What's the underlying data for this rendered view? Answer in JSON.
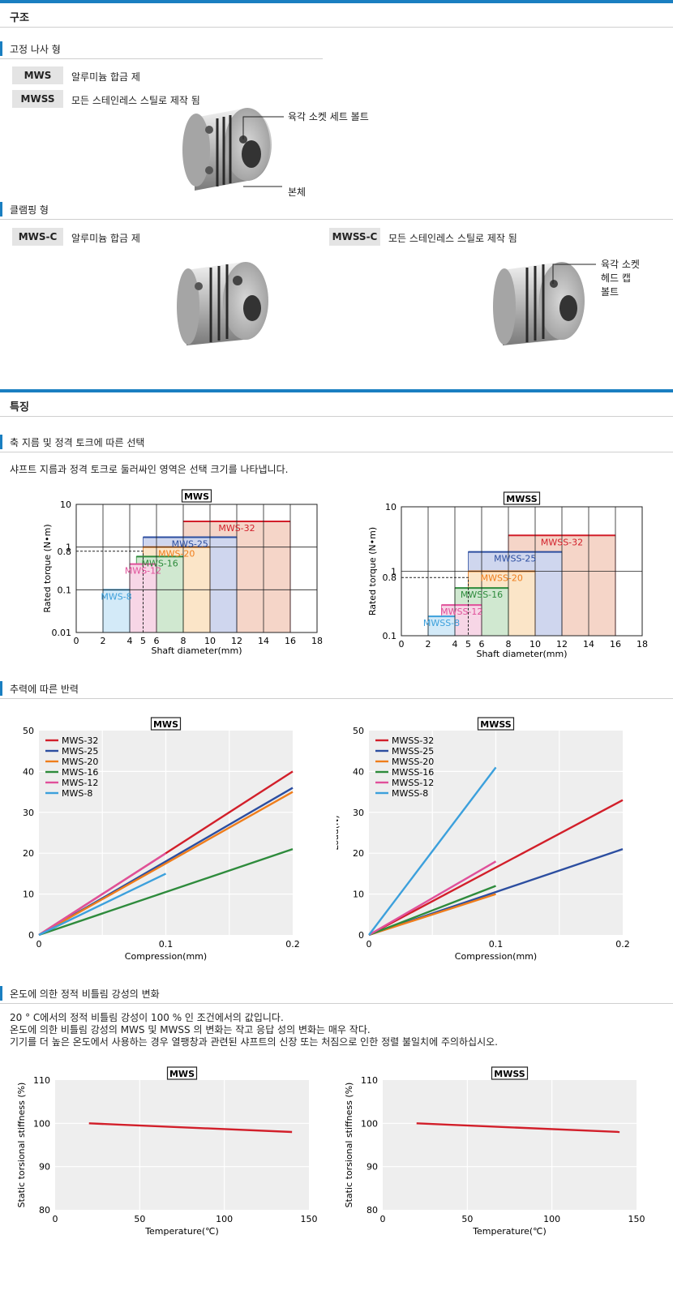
{
  "sections": {
    "structure": "구조",
    "features": "특징"
  },
  "fixed_screw": {
    "title": "고정 나사 형",
    "rows": [
      {
        "tag": "MWS",
        "desc": "알루미늄 합금 제"
      },
      {
        "tag": "MWSS",
        "desc": "모든 스테인레스 스틸로 제작 됨"
      }
    ],
    "callout_bolt": "육각 소켓 세트 볼트",
    "callout_body": "본체"
  },
  "clamping": {
    "title": "클램핑 형",
    "left": {
      "tag": "MWS-C",
      "desc": "알루미늄 합금 제"
    },
    "right": {
      "tag": "MWSS-C",
      "desc": "모든 스테인레스 스틸로 제작 됨"
    },
    "callout": [
      "육각 소켓",
      "헤드 캡",
      "볼트"
    ]
  },
  "selection": {
    "title": "축 지름 및 정격 토크에 따른 선택",
    "desc": "샤프트 지름과 정격 토크로 둘러싸인 영역은 선택 크기를 나타냅니다."
  },
  "reaction": {
    "title": "추력에 따른 반력"
  },
  "temperature": {
    "title": "온도에 의한 정적 비틀림 강성의 변화",
    "notes": [
      "20 ° C에서의 정적 비틀림 강성이 100 % 인 조건에서의 값입니다.",
      "온도에 의한 비틀림 강성의 MWS 및 MWSS 의 변화는 작고 응답 성의 변화는 매우 작다.",
      "기기를 더 높은 온도에서 사용하는 경우 열팽창과 관련된 샤프트의 신장 또는 처짐으로 인한 정렬 불일치에 주의하십시오."
    ]
  },
  "colors": {
    "accent": "#1a7fc1",
    "s32": "#d21f2a",
    "s25": "#2c4ea0",
    "s20": "#ef7d1b",
    "s16": "#2e8b3c",
    "s12": "#e0509a",
    "s8": "#3ca0dc"
  },
  "chart_data": [
    {
      "type": "area",
      "title": "MWS",
      "xlabel": "Shaft diameter(mm)",
      "ylabel": "Rated torque (N•m)",
      "log_y": true,
      "xlim": [
        0,
        18
      ],
      "ylim": [
        0.01,
        10
      ],
      "x_ticks": [
        "0",
        "2",
        "4",
        "5",
        "6",
        "8",
        "10",
        "12",
        "14",
        "16",
        "18"
      ],
      "y_ticks": [
        "10",
        "1",
        "0.8",
        "0.1",
        "0.01"
      ],
      "reference": {
        "x": 5,
        "y": 0.8
      },
      "series": [
        {
          "name": "MWS-32",
          "x_range": [
            8,
            16
          ],
          "torque": 4.0,
          "color": "#d21f2a",
          "fill": "#f5d5c8"
        },
        {
          "name": "MWS-25",
          "x_range": [
            5,
            12
          ],
          "torque": 1.7,
          "color": "#2c4ea0",
          "fill": "#cfd6ee"
        },
        {
          "name": "MWS-20",
          "x_range": [
            5,
            10
          ],
          "torque": 1.0,
          "color": "#ef7d1b",
          "fill": "#fbe5c8"
        },
        {
          "name": "MWS-16",
          "x_range": [
            4.5,
            8
          ],
          "torque": 0.6,
          "color": "#2e8b3c",
          "fill": "#d0e8d0"
        },
        {
          "name": "MWS-12",
          "x_range": [
            4,
            6
          ],
          "torque": 0.4,
          "color": "#e0509a",
          "fill": "#f7d6e6"
        },
        {
          "name": "MWS-8",
          "x_range": [
            2,
            4
          ],
          "torque": 0.1,
          "color": "#3ca0dc",
          "fill": "#d3eaf8"
        }
      ]
    },
    {
      "type": "area",
      "title": "MWSS",
      "xlabel": "Shaft diameter(mm)",
      "ylabel": "Rated torque (N•m)",
      "log_y": true,
      "xlim": [
        0,
        18
      ],
      "ylim": [
        0.1,
        10
      ],
      "x_ticks": [
        "0",
        "2",
        "4",
        "5",
        "6",
        "8",
        "10",
        "12",
        "14",
        "16",
        "18"
      ],
      "y_ticks": [
        "10",
        "1",
        "0.8",
        "0.1"
      ],
      "reference": {
        "x": 5,
        "y": 0.8
      },
      "series": [
        {
          "name": "MWSS-32",
          "x_range": [
            8,
            16
          ],
          "torque": 3.6,
          "color": "#d21f2a",
          "fill": "#f5d5c8"
        },
        {
          "name": "MWSS-25",
          "x_range": [
            5,
            12
          ],
          "torque": 2.0,
          "color": "#2c4ea0",
          "fill": "#cfd6ee"
        },
        {
          "name": "MWSS-20",
          "x_range": [
            5,
            10
          ],
          "torque": 1.0,
          "color": "#ef7d1b",
          "fill": "#fbe5c8"
        },
        {
          "name": "MWSS-16",
          "x_range": [
            4,
            8
          ],
          "torque": 0.55,
          "color": "#2e8b3c",
          "fill": "#d0e8d0"
        },
        {
          "name": "MWSS-12",
          "x_range": [
            3,
            6
          ],
          "torque": 0.3,
          "color": "#e0509a",
          "fill": "#f7d6e6"
        },
        {
          "name": "MWSS-8",
          "x_range": [
            2,
            4
          ],
          "torque": 0.2,
          "color": "#3ca0dc",
          "fill": "#d3eaf8"
        }
      ]
    },
    {
      "type": "line",
      "title": "MWS",
      "xlabel": "Compression(mm)",
      "ylabel": "",
      "xlim": [
        0,
        0.2
      ],
      "ylim": [
        0,
        50
      ],
      "x_ticks": [
        "0",
        "0.1",
        "0.2"
      ],
      "y_ticks": [
        "0",
        "10",
        "20",
        "30",
        "40",
        "50"
      ],
      "legend": "top-left",
      "series": [
        {
          "name": "MWS-32",
          "x": [
            0,
            0.2
          ],
          "y": [
            0,
            40
          ],
          "color": "#d21f2a"
        },
        {
          "name": "MWS-25",
          "x": [
            0,
            0.2
          ],
          "y": [
            0,
            36
          ],
          "color": "#2c4ea0"
        },
        {
          "name": "MWS-20",
          "x": [
            0,
            0.2
          ],
          "y": [
            0,
            35
          ],
          "color": "#ef7d1b"
        },
        {
          "name": "MWS-16",
          "x": [
            0,
            0.2
          ],
          "y": [
            0,
            21
          ],
          "color": "#2e8b3c"
        },
        {
          "name": "MWS-12",
          "x": [
            0,
            0.1
          ],
          "y": [
            0,
            20
          ],
          "color": "#e0509a"
        },
        {
          "name": "MWS-8",
          "x": [
            0,
            0.1
          ],
          "y": [
            0,
            15
          ],
          "color": "#3ca0dc"
        }
      ]
    },
    {
      "type": "line",
      "title": "MWSS",
      "xlabel": "Compression(mm)",
      "ylabel": "Load(N)",
      "xlim": [
        0,
        0.2
      ],
      "ylim": [
        0,
        50
      ],
      "x_ticks": [
        "0",
        "0.1",
        "0.2"
      ],
      "y_ticks": [
        "0",
        "10",
        "20",
        "30",
        "40",
        "50"
      ],
      "legend": "top-left",
      "series": [
        {
          "name": "MWSS-32",
          "x": [
            0,
            0.2
          ],
          "y": [
            0,
            33
          ],
          "color": "#d21f2a"
        },
        {
          "name": "MWSS-25",
          "x": [
            0,
            0.2
          ],
          "y": [
            0,
            21
          ],
          "color": "#2c4ea0"
        },
        {
          "name": "MWSS-20",
          "x": [
            0,
            0.1
          ],
          "y": [
            0,
            10
          ],
          "color": "#ef7d1b"
        },
        {
          "name": "MWSS-16",
          "x": [
            0,
            0.1
          ],
          "y": [
            0,
            12
          ],
          "color": "#2e8b3c"
        },
        {
          "name": "MWSS-12",
          "x": [
            0,
            0.1
          ],
          "y": [
            0,
            18
          ],
          "color": "#e0509a"
        },
        {
          "name": "MWSS-8",
          "x": [
            0,
            0.1
          ],
          "y": [
            0,
            41
          ],
          "color": "#3ca0dc"
        }
      ]
    },
    {
      "type": "line",
      "title": "MWS",
      "xlabel": "Temperature(℃)",
      "ylabel": "Static torsional stiffness (%)",
      "xlim": [
        0,
        150
      ],
      "ylim": [
        80,
        110
      ],
      "x_ticks": [
        "0",
        "50",
        "100",
        "150"
      ],
      "y_ticks": [
        "80",
        "90",
        "100",
        "110"
      ],
      "series": [
        {
          "name": "",
          "x": [
            20,
            140
          ],
          "y": [
            100,
            98
          ],
          "color": "#d21f2a"
        }
      ]
    },
    {
      "type": "line",
      "title": "MWSS",
      "xlabel": "Temperature(℃)",
      "ylabel": "Static torsional stiffness (%)",
      "xlim": [
        0,
        150
      ],
      "ylim": [
        80,
        110
      ],
      "x_ticks": [
        "0",
        "50",
        "100",
        "150"
      ],
      "y_ticks": [
        "80",
        "90",
        "100",
        "110"
      ],
      "series": [
        {
          "name": "",
          "x": [
            20,
            140
          ],
          "y": [
            100,
            98
          ],
          "color": "#d21f2a"
        }
      ]
    }
  ]
}
